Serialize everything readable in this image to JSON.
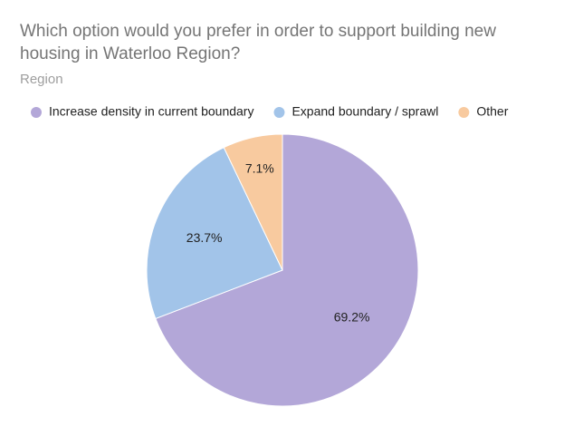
{
  "chart_data": {
    "type": "pie",
    "title": "Which option would you prefer in order to support building new housing in Waterloo Region?",
    "subtitle": "Region",
    "categories": [
      "Increase density in current boundary",
      "Expand boundary / sprawl",
      "Other"
    ],
    "values": [
      69.2,
      23.7,
      7.1
    ],
    "value_labels": [
      "69.2%",
      "23.7%",
      "7.1%"
    ],
    "colors": [
      "#b3a7d8",
      "#a2c4e9",
      "#f8ca9f"
    ],
    "legend": "top"
  }
}
